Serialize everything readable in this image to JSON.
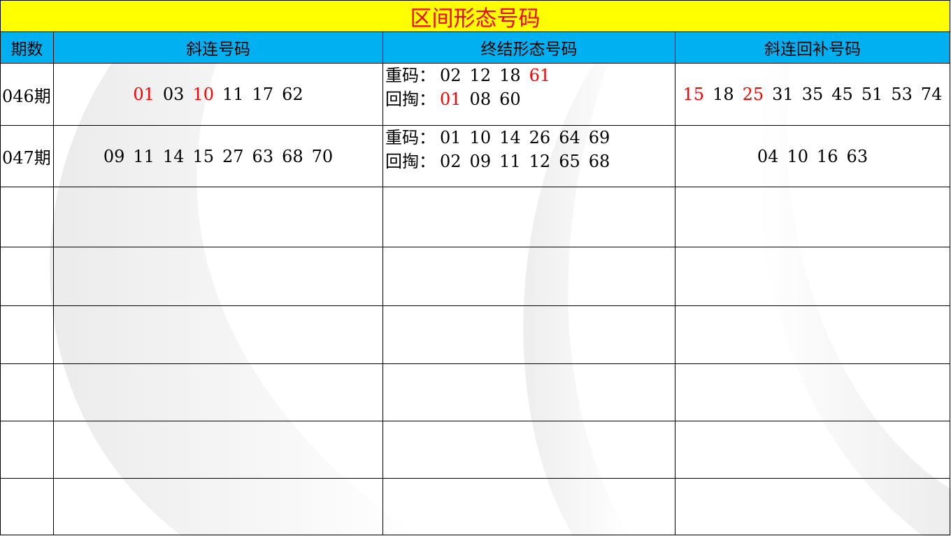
{
  "title": "区间形态号码",
  "headers": [
    "期数",
    "斜连号码",
    "终结形态号码",
    "斜连回补号码"
  ],
  "colors": {
    "title_bg": "#ffff00",
    "title_text": "#ff0000",
    "header_bg": "#00b0f0",
    "highlight": "#ff0000"
  },
  "rows": [
    {
      "period": "046期",
      "xielian": [
        {
          "v": "01",
          "red": true
        },
        {
          "v": "03"
        },
        {
          "v": "10",
          "red": true
        },
        {
          "v": "11"
        },
        {
          "v": "17"
        },
        {
          "v": "62"
        }
      ],
      "zhongjie": {
        "chongma_label": "重码：",
        "chongma": [
          {
            "v": "02"
          },
          {
            "v": "12"
          },
          {
            "v": "18"
          },
          {
            "v": "61",
            "red": true
          }
        ],
        "huitao_label": "回掏：",
        "huitao": [
          {
            "v": "01",
            "red": true
          },
          {
            "v": "08"
          },
          {
            "v": "60"
          }
        ]
      },
      "huibu": [
        {
          "v": "15",
          "red": true
        },
        {
          "v": "18"
        },
        {
          "v": "25",
          "red": true
        },
        {
          "v": "31"
        },
        {
          "v": "35"
        },
        {
          "v": "45"
        },
        {
          "v": "51"
        },
        {
          "v": "53"
        },
        {
          "v": "74"
        }
      ]
    },
    {
      "period": "047期",
      "xielian": [
        {
          "v": "09"
        },
        {
          "v": "11"
        },
        {
          "v": "14"
        },
        {
          "v": "15"
        },
        {
          "v": "27"
        },
        {
          "v": "63"
        },
        {
          "v": "68"
        },
        {
          "v": "70"
        }
      ],
      "zhongjie": {
        "chongma_label": "重码：",
        "chongma": [
          {
            "v": "01"
          },
          {
            "v": "10"
          },
          {
            "v": "14"
          },
          {
            "v": "26"
          },
          {
            "v": "64"
          },
          {
            "v": "69"
          }
        ],
        "huitao_label": "回掏：",
        "huitao": [
          {
            "v": "02"
          },
          {
            "v": "09"
          },
          {
            "v": "11"
          },
          {
            "v": "12"
          },
          {
            "v": "65"
          },
          {
            "v": "68"
          }
        ]
      },
      "huibu": [
        {
          "v": "04"
        },
        {
          "v": "10"
        },
        {
          "v": "16"
        },
        {
          "v": "63"
        }
      ]
    }
  ],
  "empty_rows": 6
}
